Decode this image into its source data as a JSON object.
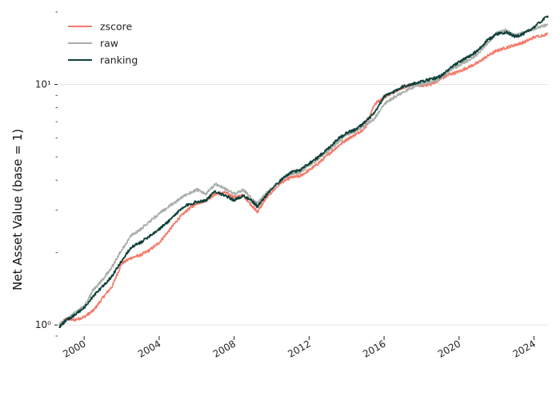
{
  "chart_data": {
    "type": "line",
    "ylabel": "Net Asset Value (base = 1)",
    "xlabel": "",
    "yscale": "log",
    "ylim": [
      0.9,
      20
    ],
    "xlim": [
      "1998-08-01",
      "2024-09-30"
    ],
    "grid": "horizontal major lines only",
    "legend_position": "top-left",
    "x_ticks": [
      "2000",
      "2004",
      "2008",
      "2012",
      "2016",
      "2020",
      "2024"
    ],
    "y_ticks": [
      {
        "value": 1,
        "label": "10⁰"
      },
      {
        "value": 10,
        "label": "10¹"
      }
    ],
    "series": [
      {
        "name": "zscore",
        "color": "#f47b6b",
        "points": [
          [
            "1998-09-01",
            1.0
          ],
          [
            "1999-01-01",
            1.06
          ],
          [
            "1999-07-01",
            1.05
          ],
          [
            "2000-01-01",
            1.08
          ],
          [
            "2000-07-01",
            1.15
          ],
          [
            "2001-01-01",
            1.3
          ],
          [
            "2001-07-01",
            1.45
          ],
          [
            "2002-01-01",
            1.8
          ],
          [
            "2002-07-01",
            1.9
          ],
          [
            "2003-01-01",
            1.95
          ],
          [
            "2003-07-01",
            2.05
          ],
          [
            "2004-01-01",
            2.2
          ],
          [
            "2004-07-01",
            2.45
          ],
          [
            "2005-01-01",
            2.75
          ],
          [
            "2005-07-01",
            3.0
          ],
          [
            "2006-01-01",
            3.2
          ],
          [
            "2006-07-01",
            3.3
          ],
          [
            "2007-01-01",
            3.5
          ],
          [
            "2007-07-01",
            3.55
          ],
          [
            "2008-01-01",
            3.4
          ],
          [
            "2008-07-01",
            3.45
          ],
          [
            "2009-01-01",
            3.1
          ],
          [
            "2009-04-01",
            2.95
          ],
          [
            "2009-10-01",
            3.4
          ],
          [
            "2010-07-01",
            3.9
          ],
          [
            "2011-01-01",
            4.1
          ],
          [
            "2011-07-01",
            4.15
          ],
          [
            "2012-01-01",
            4.4
          ],
          [
            "2012-07-01",
            4.7
          ],
          [
            "2013-01-01",
            5.1
          ],
          [
            "2013-07-01",
            5.5
          ],
          [
            "2014-01-01",
            5.9
          ],
          [
            "2014-07-01",
            6.2
          ],
          [
            "2015-01-01",
            6.6
          ],
          [
            "2015-07-01",
            8.3
          ],
          [
            "2016-01-01",
            8.8
          ],
          [
            "2016-07-01",
            9.3
          ],
          [
            "2017-01-01",
            9.7
          ],
          [
            "2017-07-01",
            10.0
          ],
          [
            "2018-01-01",
            9.9
          ],
          [
            "2018-07-01",
            10.0
          ],
          [
            "2019-01-01",
            10.5
          ],
          [
            "2019-07-01",
            11.0
          ],
          [
            "2020-01-01",
            11.3
          ],
          [
            "2020-07-01",
            11.8
          ],
          [
            "2021-01-01",
            12.3
          ],
          [
            "2021-07-01",
            13.1
          ],
          [
            "2022-01-01",
            13.8
          ],
          [
            "2022-07-01",
            14.2
          ],
          [
            "2023-01-01",
            14.6
          ],
          [
            "2023-07-01",
            15.0
          ],
          [
            "2024-01-01",
            15.7
          ],
          [
            "2024-09-30",
            16.2
          ]
        ]
      },
      {
        "name": "raw",
        "color": "#a9b0aa",
        "points": [
          [
            "1998-09-01",
            1.0
          ],
          [
            "1999-01-01",
            1.05
          ],
          [
            "1999-07-01",
            1.12
          ],
          [
            "2000-01-01",
            1.2
          ],
          [
            "2000-07-01",
            1.4
          ],
          [
            "2001-01-01",
            1.55
          ],
          [
            "2001-07-01",
            1.75
          ],
          [
            "2002-01-01",
            2.05
          ],
          [
            "2002-07-01",
            2.35
          ],
          [
            "2003-01-01",
            2.5
          ],
          [
            "2003-07-01",
            2.7
          ],
          [
            "2004-01-01",
            2.9
          ],
          [
            "2004-07-01",
            3.1
          ],
          [
            "2005-01-01",
            3.3
          ],
          [
            "2005-07-01",
            3.5
          ],
          [
            "2006-01-01",
            3.65
          ],
          [
            "2006-07-01",
            3.5
          ],
          [
            "2007-01-01",
            3.85
          ],
          [
            "2007-07-01",
            3.7
          ],
          [
            "2008-01-01",
            3.5
          ],
          [
            "2008-07-01",
            3.65
          ],
          [
            "2009-01-01",
            3.3
          ],
          [
            "2009-04-01",
            3.2
          ],
          [
            "2009-10-01",
            3.55
          ],
          [
            "2010-07-01",
            4.0
          ],
          [
            "2011-01-01",
            4.25
          ],
          [
            "2011-07-01",
            4.3
          ],
          [
            "2012-01-01",
            4.6
          ],
          [
            "2012-07-01",
            4.9
          ],
          [
            "2013-01-01",
            5.3
          ],
          [
            "2013-07-01",
            5.7
          ],
          [
            "2014-01-01",
            6.2
          ],
          [
            "2014-07-01",
            6.4
          ],
          [
            "2015-01-01",
            6.8
          ],
          [
            "2015-07-01",
            7.2
          ],
          [
            "2016-01-01",
            8.3
          ],
          [
            "2016-07-01",
            8.8
          ],
          [
            "2017-01-01",
            9.3
          ],
          [
            "2017-07-01",
            9.7
          ],
          [
            "2018-01-01",
            10.1
          ],
          [
            "2018-07-01",
            10.2
          ],
          [
            "2019-01-01",
            10.6
          ],
          [
            "2019-07-01",
            11.4
          ],
          [
            "2020-01-01",
            12.0
          ],
          [
            "2020-07-01",
            12.6
          ],
          [
            "2021-01-01",
            13.4
          ],
          [
            "2021-07-01",
            14.8
          ],
          [
            "2022-01-01",
            16.3
          ],
          [
            "2022-07-01",
            16.8
          ],
          [
            "2023-01-01",
            16.0
          ],
          [
            "2023-07-01",
            16.5
          ],
          [
            "2024-01-01",
            17.0
          ],
          [
            "2024-09-30",
            17.8
          ]
        ]
      },
      {
        "name": "ranking",
        "color": "#11413b",
        "points": [
          [
            "1998-09-01",
            0.98
          ],
          [
            "1999-01-01",
            1.04
          ],
          [
            "1999-07-01",
            1.1
          ],
          [
            "2000-01-01",
            1.18
          ],
          [
            "2000-07-01",
            1.32
          ],
          [
            "2001-01-01",
            1.45
          ],
          [
            "2001-07-01",
            1.6
          ],
          [
            "2002-01-01",
            1.85
          ],
          [
            "2002-07-01",
            2.1
          ],
          [
            "2003-01-01",
            2.2
          ],
          [
            "2003-07-01",
            2.35
          ],
          [
            "2004-01-01",
            2.5
          ],
          [
            "2004-07-01",
            2.7
          ],
          [
            "2005-01-01",
            2.95
          ],
          [
            "2005-07-01",
            3.15
          ],
          [
            "2006-01-01",
            3.25
          ],
          [
            "2006-07-01",
            3.3
          ],
          [
            "2007-01-01",
            3.6
          ],
          [
            "2007-07-01",
            3.45
          ],
          [
            "2008-01-01",
            3.3
          ],
          [
            "2008-07-01",
            3.45
          ],
          [
            "2009-01-01",
            3.25
          ],
          [
            "2009-04-01",
            3.1
          ],
          [
            "2009-10-01",
            3.5
          ],
          [
            "2010-07-01",
            4.0
          ],
          [
            "2011-01-01",
            4.3
          ],
          [
            "2011-07-01",
            4.4
          ],
          [
            "2012-01-01",
            4.7
          ],
          [
            "2012-07-01",
            5.0
          ],
          [
            "2013-01-01",
            5.4
          ],
          [
            "2013-07-01",
            5.9
          ],
          [
            "2014-01-01",
            6.3
          ],
          [
            "2014-07-01",
            6.5
          ],
          [
            "2015-01-01",
            7.0
          ],
          [
            "2015-07-01",
            7.6
          ],
          [
            "2016-01-01",
            8.9
          ],
          [
            "2016-07-01",
            9.3
          ],
          [
            "2017-01-01",
            9.8
          ],
          [
            "2017-07-01",
            10.0
          ],
          [
            "2018-01-01",
            10.3
          ],
          [
            "2018-07-01",
            10.5
          ],
          [
            "2019-01-01",
            10.8
          ],
          [
            "2019-07-01",
            11.6
          ],
          [
            "2020-01-01",
            12.4
          ],
          [
            "2020-07-01",
            13.0
          ],
          [
            "2021-01-01",
            13.8
          ],
          [
            "2021-07-01",
            15.2
          ],
          [
            "2022-01-01",
            16.2
          ],
          [
            "2022-07-01",
            16.5
          ],
          [
            "2023-01-01",
            15.8
          ],
          [
            "2023-07-01",
            16.3
          ],
          [
            "2024-01-01",
            17.3
          ],
          [
            "2024-09-30",
            19.3
          ]
        ]
      }
    ]
  }
}
